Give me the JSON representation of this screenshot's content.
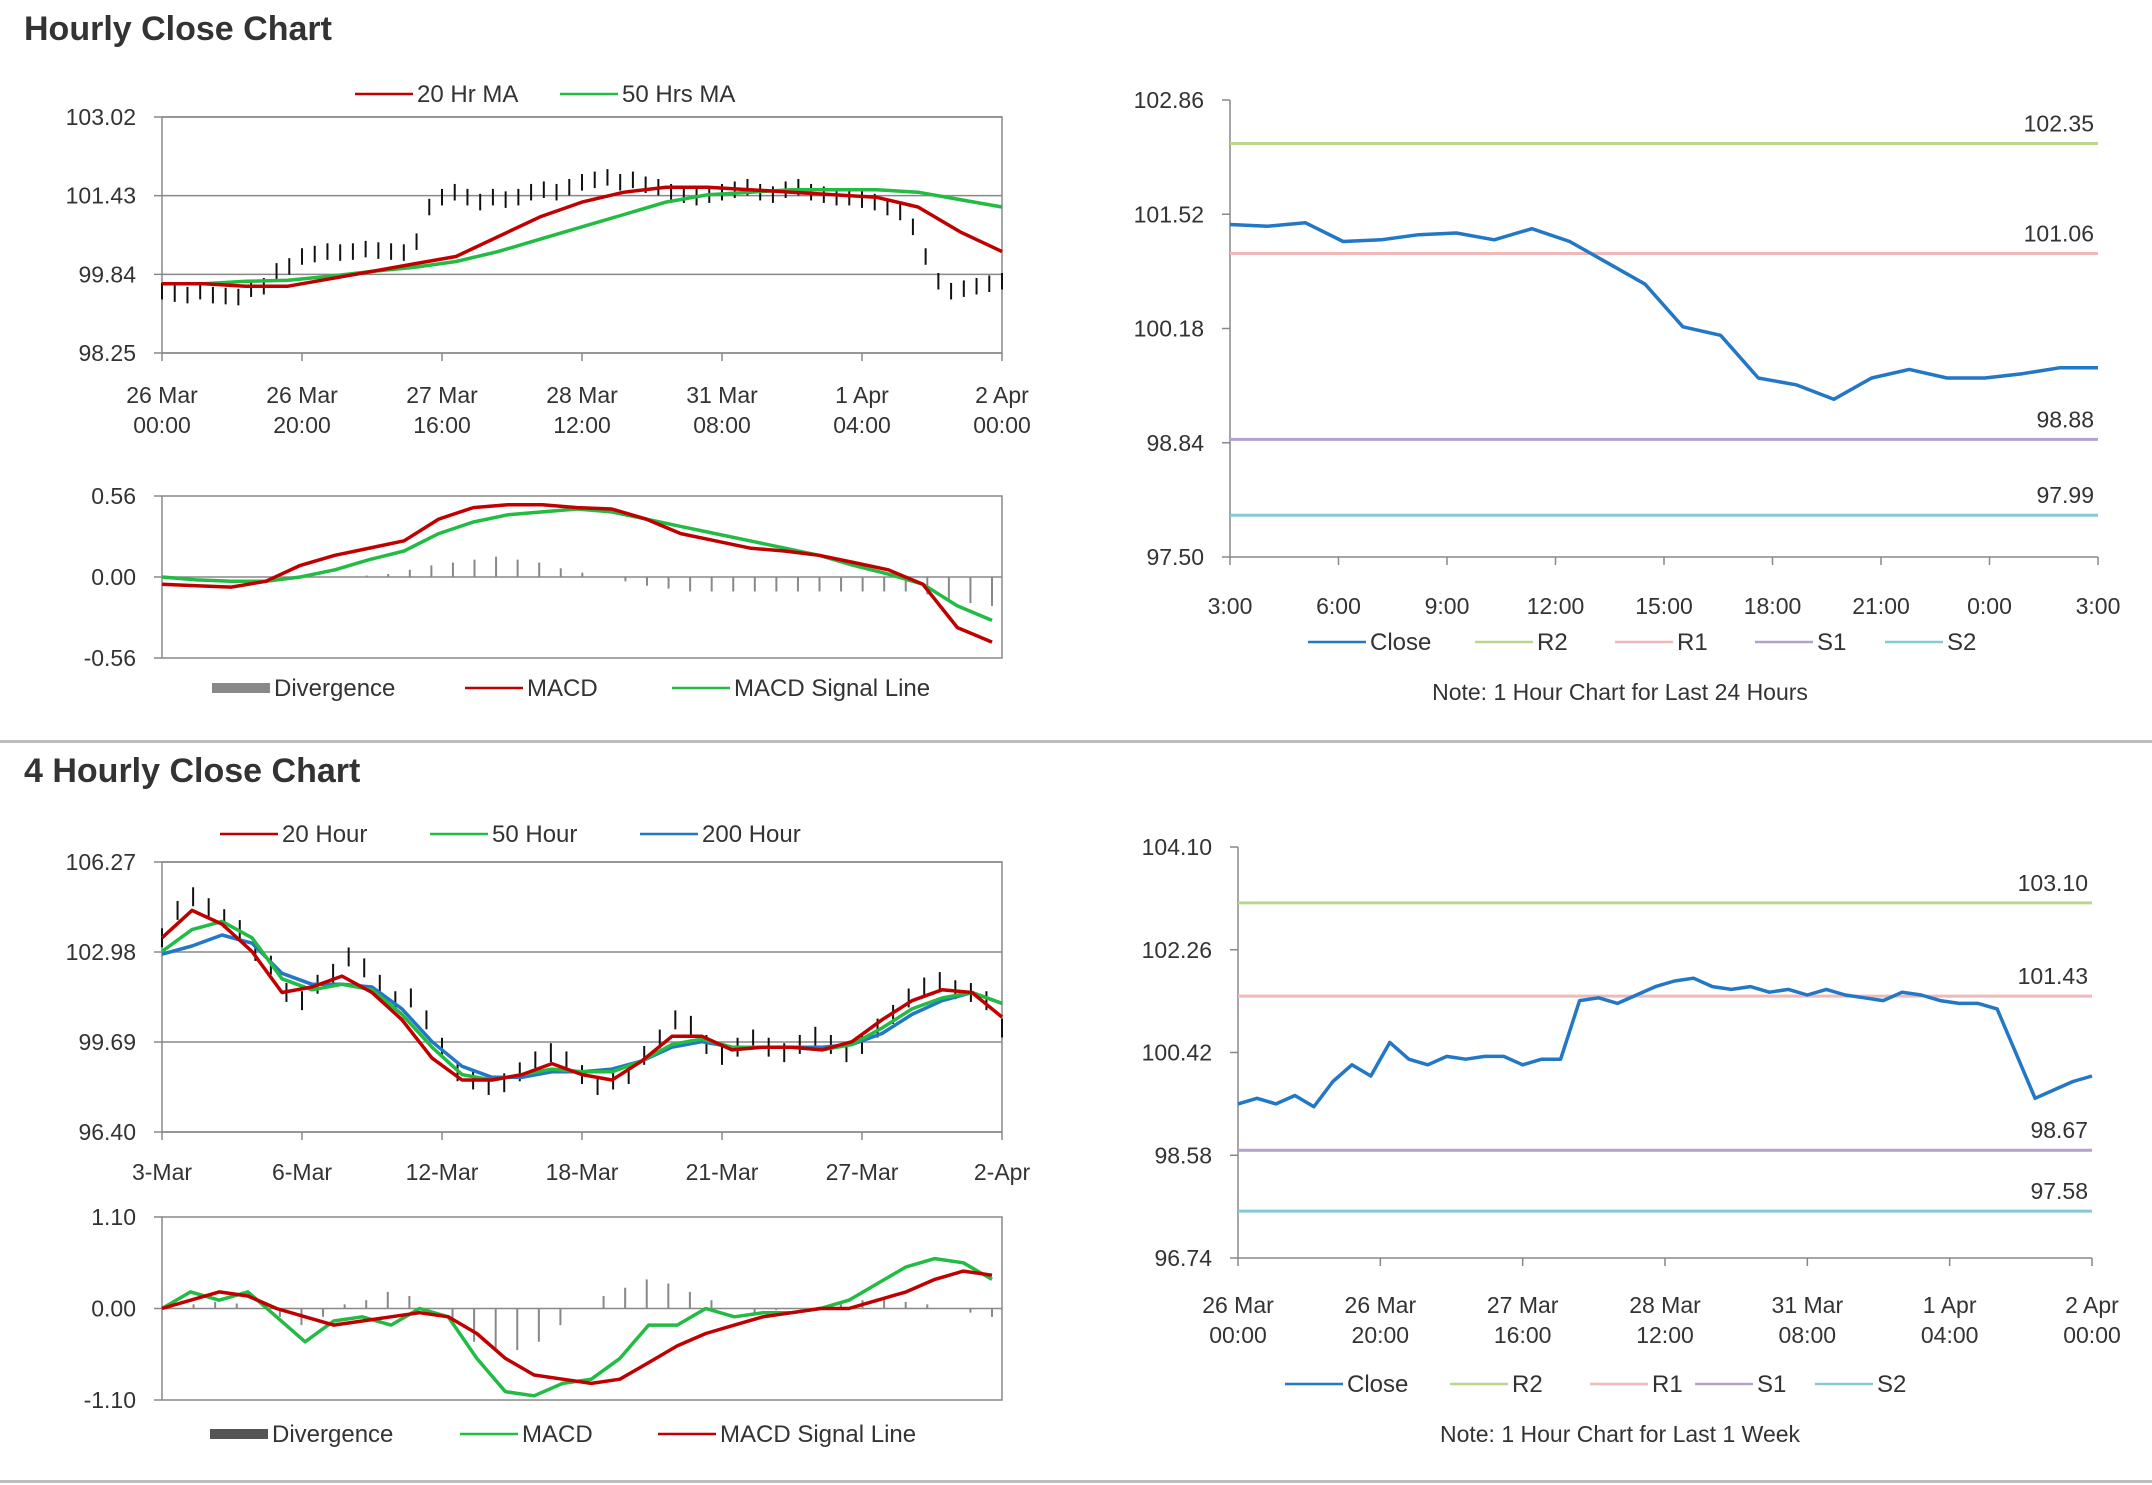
{
  "sections": [
    {
      "title": "Hourly Close Chart"
    },
    {
      "title": "4 Hourly Close Chart"
    }
  ],
  "colors": {
    "red": "#c00000",
    "green": "#22bb44",
    "blue": "#2277c6",
    "r2": "#b8d68e",
    "r1": "#f0b8b8",
    "s1": "#b4a2cc",
    "s2": "#86c9d6",
    "grid": "#888888",
    "bar": "#111111",
    "hist": "#888888"
  },
  "chart_data": [
    {
      "type": "line",
      "ylim": [
        98.25,
        103.02
      ],
      "y_ticks": [
        "103.02",
        "101.43",
        "99.84",
        "98.25"
      ],
      "x_ticks": [
        [
          "26 Mar",
          "00:00"
        ],
        [
          "26 Mar",
          "20:00"
        ],
        [
          "27 Mar",
          "16:00"
        ],
        [
          "28 Mar",
          "12:00"
        ],
        [
          "31 Mar",
          "08:00"
        ],
        [
          "1 Apr",
          "04:00"
        ],
        [
          "2 Apr",
          "00:00"
        ]
      ],
      "legend": [
        "20 Hr MA",
        "50 Hrs MA"
      ],
      "bars": [
        99.5,
        99.45,
        99.42,
        99.5,
        99.42,
        99.4,
        99.38,
        99.55,
        99.6,
        99.9,
        100.0,
        100.2,
        100.25,
        100.3,
        100.28,
        100.3,
        100.35,
        100.32,
        100.3,
        100.28,
        100.5,
        101.2,
        101.4,
        101.5,
        101.4,
        101.3,
        101.4,
        101.35,
        101.4,
        101.5,
        101.55,
        101.5,
        101.6,
        101.7,
        101.75,
        101.8,
        101.7,
        101.75,
        101.65,
        101.6,
        101.5,
        101.45,
        101.4,
        101.45,
        101.5,
        101.55,
        101.6,
        101.5,
        101.45,
        101.55,
        101.6,
        101.5,
        101.45,
        101.4,
        101.4,
        101.35,
        101.3,
        101.2,
        101.1,
        100.8,
        100.2,
        99.7,
        99.5,
        99.55,
        99.6,
        99.65,
        99.7
      ],
      "series": [
        {
          "name": "20 Hr MA",
          "values": [
            99.65,
            99.65,
            99.6,
            99.6,
            99.75,
            99.9,
            100.05,
            100.2,
            100.6,
            101.0,
            101.3,
            101.5,
            101.6,
            101.6,
            101.55,
            101.5,
            101.45,
            101.4,
            101.2,
            100.7,
            100.3
          ]
        },
        {
          "name": "50 Hrs MA",
          "values": [
            99.65,
            99.65,
            99.7,
            99.72,
            99.8,
            99.9,
            99.98,
            100.1,
            100.3,
            100.55,
            100.8,
            101.05,
            101.3,
            101.45,
            101.5,
            101.55,
            101.55,
            101.55,
            101.5,
            101.35,
            101.2
          ]
        }
      ],
      "sub": {
        "ylim": [
          -0.56,
          0.56
        ],
        "y_ticks": [
          "0.56",
          "0.00",
          "-0.56"
        ],
        "legend": [
          "Divergence",
          "MACD",
          "MACD Signal Line"
        ],
        "divergence": [
          0.0,
          0.0,
          0.0,
          0.01,
          0.02,
          0.05,
          0.08,
          0.1,
          0.12,
          0.14,
          0.12,
          0.1,
          0.06,
          0.03,
          0.0,
          -0.03,
          -0.06,
          -0.08,
          -0.1,
          -0.1,
          -0.1,
          -0.1,
          -0.1,
          -0.1,
          -0.1,
          -0.1,
          -0.1,
          -0.1,
          -0.1,
          -0.12,
          -0.15,
          -0.18,
          -0.2
        ],
        "macd": [
          -0.05,
          -0.06,
          -0.07,
          -0.03,
          0.08,
          0.15,
          0.2,
          0.25,
          0.4,
          0.48,
          0.5,
          0.5,
          0.48,
          0.47,
          0.4,
          0.3,
          0.25,
          0.2,
          0.18,
          0.15,
          0.1,
          0.05,
          -0.05,
          -0.35,
          -0.45
        ],
        "signal": [
          0.0,
          -0.02,
          -0.03,
          -0.03,
          0.0,
          0.05,
          0.12,
          0.18,
          0.3,
          0.38,
          0.43,
          0.45,
          0.47,
          0.45,
          0.4,
          0.35,
          0.3,
          0.25,
          0.2,
          0.15,
          0.08,
          0.02,
          -0.05,
          -0.2,
          -0.3
        ]
      }
    },
    {
      "type": "line",
      "ylim": [
        97.5,
        102.86
      ],
      "y_ticks": [
        "102.86",
        "101.52",
        "100.18",
        "98.84",
        "97.50"
      ],
      "x_ticks": [
        "3:00",
        "6:00",
        "9:00",
        "12:00",
        "15:00",
        "18:00",
        "21:00",
        "0:00",
        "3:00"
      ],
      "levels": [
        {
          "name": "R2",
          "value": 102.35,
          "label": "102.35"
        },
        {
          "name": "R1",
          "value": 101.06,
          "label": "101.06"
        },
        {
          "name": "S1",
          "value": 98.88,
          "label": "98.88"
        },
        {
          "name": "S2",
          "value": 97.99,
          "label": "97.99"
        }
      ],
      "legend": [
        "Close",
        "R2",
        "R1",
        "S1",
        "S2"
      ],
      "note": "Note: 1 Hour Chart for Last 24 Hours",
      "series": [
        {
          "name": "Close",
          "values": [
            101.4,
            101.38,
            101.42,
            101.2,
            101.22,
            101.28,
            101.3,
            101.22,
            101.35,
            101.2,
            100.95,
            100.7,
            100.2,
            100.1,
            99.6,
            99.52,
            99.35,
            99.6,
            99.7,
            99.6,
            99.6,
            99.65,
            99.72,
            99.72
          ]
        }
      ]
    },
    {
      "type": "line",
      "ylim": [
        96.4,
        106.27
      ],
      "y_ticks": [
        "106.27",
        "102.98",
        "99.69",
        "96.40"
      ],
      "x_ticks": [
        "3-Mar",
        "6-Mar",
        "12-Mar",
        "18-Mar",
        "21-Mar",
        "27-Mar",
        "2-Apr"
      ],
      "legend": [
        "20 Hour",
        "50 Hour",
        "200 Hour"
      ],
      "bars": [
        103.5,
        104.5,
        105,
        104.6,
        104.2,
        103.8,
        103,
        102.5,
        101.5,
        101.2,
        101.8,
        102.2,
        102.8,
        102.4,
        101.8,
        101.2,
        101.3,
        100.5,
        99.5,
        98.6,
        98.3,
        98.1,
        98.2,
        98.6,
        99,
        99.3,
        99,
        98.5,
        98.1,
        98.3,
        98.5,
        99.2,
        99.8,
        100.5,
        100.3,
        99.6,
        99.2,
        99.5,
        99.8,
        99.5,
        99.3,
        99.6,
        99.9,
        99.6,
        99.3,
        99.6,
        100.2,
        100.7,
        101.3,
        101.7,
        101.9,
        101.6,
        101.5,
        101.2,
        100.2
      ],
      "series": [
        {
          "name": "20 Hour",
          "values": [
            103.5,
            104.5,
            104.0,
            103.0,
            101.5,
            101.7,
            102.1,
            101.5,
            100.5,
            99.1,
            98.3,
            98.3,
            98.5,
            98.9,
            98.5,
            98.3,
            99.0,
            99.9,
            99.9,
            99.4,
            99.5,
            99.5,
            99.4,
            99.7,
            100.5,
            101.2,
            101.6,
            101.5,
            100.6
          ]
        },
        {
          "name": "50 Hour",
          "values": [
            103.0,
            103.8,
            104.1,
            103.5,
            102.0,
            101.6,
            101.8,
            101.6,
            100.7,
            99.5,
            98.5,
            98.3,
            98.5,
            98.7,
            98.6,
            98.6,
            99.0,
            99.6,
            99.8,
            99.5,
            99.5,
            99.5,
            99.4,
            99.6,
            100.2,
            100.9,
            101.3,
            101.5,
            101.1
          ]
        },
        {
          "name": "200 Hour",
          "values": [
            102.9,
            103.2,
            103.6,
            103.3,
            102.2,
            101.8,
            101.8,
            101.7,
            100.9,
            99.7,
            98.8,
            98.4,
            98.4,
            98.6,
            98.6,
            98.7,
            99.0,
            99.5,
            99.7,
            99.5,
            99.5,
            99.5,
            99.5,
            99.6,
            100.0,
            100.7,
            101.2,
            101.5,
            101.1
          ]
        }
      ],
      "sub": {
        "ylim": [
          -1.1,
          1.1
        ],
        "y_ticks": [
          "1.10",
          "0.00",
          "-1.10"
        ],
        "legend": [
          "Divergence",
          "MACD",
          "MACD Signal Line"
        ],
        "divergence": [
          0.0,
          0.05,
          0.08,
          0.06,
          0.0,
          -0.1,
          -0.2,
          -0.1,
          0.05,
          0.1,
          0.2,
          0.15,
          0.0,
          -0.2,
          -0.4,
          -0.5,
          -0.5,
          -0.4,
          -0.2,
          0.0,
          0.15,
          0.25,
          0.35,
          0.3,
          0.2,
          0.1,
          0.0,
          -0.05,
          -0.02,
          0.0,
          0.02,
          0.05,
          0.1,
          0.12,
          0.08,
          0.05,
          0.0,
          -0.05,
          -0.1
        ],
        "macd": [
          0.0,
          0.2,
          0.1,
          0.2,
          -0.1,
          -0.4,
          -0.15,
          -0.1,
          -0.2,
          0.0,
          -0.1,
          -0.6,
          -1.0,
          -1.05,
          -0.9,
          -0.85,
          -0.6,
          -0.2,
          -0.2,
          0.0,
          -0.1,
          -0.05,
          -0.05,
          0.0,
          0.1,
          0.3,
          0.5,
          0.6,
          0.55,
          0.35
        ],
        "signal": [
          0.0,
          0.1,
          0.2,
          0.15,
          0.0,
          -0.1,
          -0.2,
          -0.15,
          -0.1,
          -0.05,
          -0.1,
          -0.3,
          -0.6,
          -0.8,
          -0.85,
          -0.9,
          -0.85,
          -0.65,
          -0.45,
          -0.3,
          -0.2,
          -0.1,
          -0.05,
          0.0,
          0.0,
          0.1,
          0.2,
          0.35,
          0.45,
          0.4
        ]
      }
    },
    {
      "type": "line",
      "ylim": [
        96.74,
        104.1
      ],
      "y_ticks": [
        "104.10",
        "102.26",
        "100.42",
        "98.58",
        "96.74"
      ],
      "x_ticks": [
        [
          "26 Mar",
          "00:00"
        ],
        [
          "26 Mar",
          "20:00"
        ],
        [
          "27 Mar",
          "16:00"
        ],
        [
          "28 Mar",
          "12:00"
        ],
        [
          "31 Mar",
          "08:00"
        ],
        [
          "1 Apr",
          "04:00"
        ],
        [
          "2 Apr",
          "00:00"
        ]
      ],
      "levels": [
        {
          "name": "R2",
          "value": 103.1,
          "label": "103.10"
        },
        {
          "name": "R1",
          "value": 101.43,
          "label": "101.43"
        },
        {
          "name": "S1",
          "value": 98.67,
          "label": "98.67"
        },
        {
          "name": "S2",
          "value": 97.58,
          "label": "97.58"
        }
      ],
      "legend": [
        "Close",
        "R2",
        "R1",
        "S1",
        "S2"
      ],
      "note": "Note: 1 Hour Chart for Last 1 Week",
      "series": [
        {
          "name": "Close",
          "values": [
            99.5,
            99.6,
            99.5,
            99.65,
            99.45,
            99.9,
            100.2,
            100.0,
            100.6,
            100.3,
            100.2,
            100.35,
            100.3,
            100.35,
            100.35,
            100.2,
            100.3,
            100.3,
            101.35,
            101.4,
            101.3,
            101.45,
            101.6,
            101.7,
            101.75,
            101.6,
            101.55,
            101.6,
            101.5,
            101.55,
            101.45,
            101.55,
            101.45,
            101.4,
            101.35,
            101.5,
            101.45,
            101.35,
            101.3,
            101.3,
            101.2,
            100.4,
            99.6,
            99.75,
            99.9,
            100.0
          ]
        }
      ]
    }
  ]
}
